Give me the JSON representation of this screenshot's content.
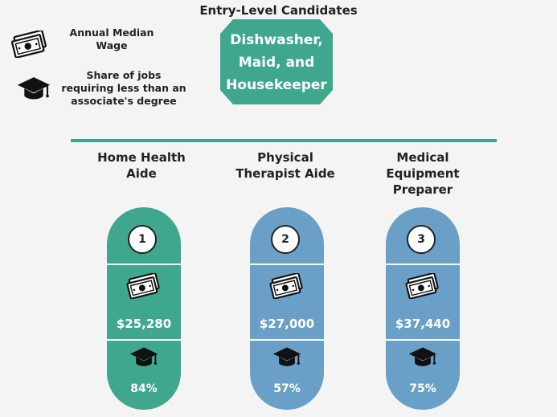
{
  "title": "Entry-Level Candidates",
  "legend": {
    "wage_icon": "cash-icon",
    "wage_label": "Annual Median Wage",
    "degree_icon": "graduation-cap-icon",
    "degree_label": "Share of jobs requiring less than an associate's degree"
  },
  "source_occupation": {
    "label": "Dishwasher, Maid, and Housekeeper",
    "color": "#3ea78d"
  },
  "colors": {
    "green": "#3ea78d",
    "blue": "#6aa0c7",
    "connector": "#3aa58c"
  },
  "candidates": [
    {
      "rank": "1",
      "title": "Home Health Aide",
      "wage": "$25,280",
      "share": "84%",
      "color": "#3ea78d"
    },
    {
      "rank": "2",
      "title": "Physical Therapist Aide",
      "wage": "$27,000",
      "share": "57%",
      "color": "#6aa0c7"
    },
    {
      "rank": "3",
      "title": "Medical Equipment Preparer",
      "wage": "$37,440",
      "share": "75%",
      "color": "#6aa0c7"
    }
  ]
}
